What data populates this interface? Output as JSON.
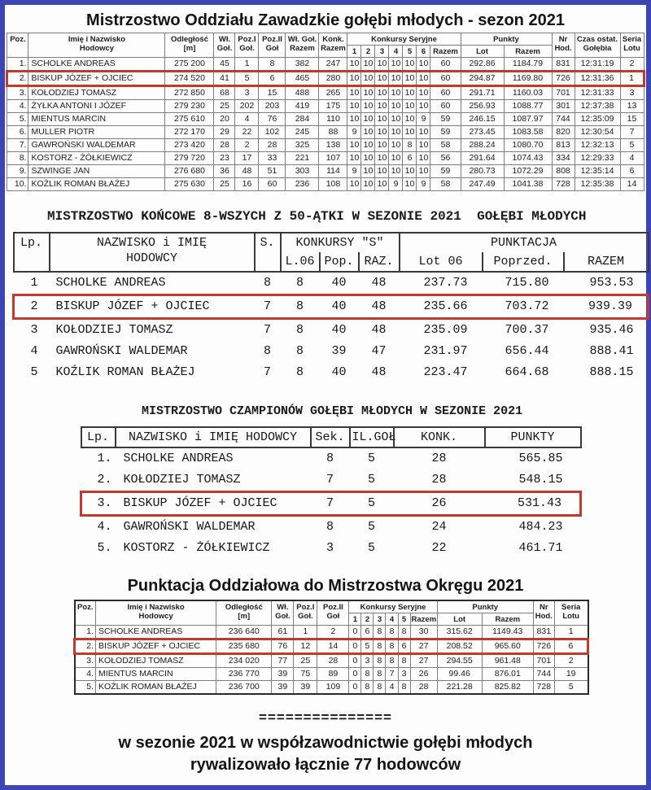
{
  "page": {
    "border_color": "#3b45b4",
    "background": "#fdfdfd",
    "highlight_color": "#c03a30"
  },
  "table1": {
    "title": "Mistrzostwo Oddziału Zawadzkie gołębi młodych - sezon 2021",
    "h": {
      "poz": "Poz.",
      "name1": "Imię i Nazwisko",
      "name2": "Hodowcy",
      "dist1": "Odległość",
      "dist2": "[m]",
      "wl1": "Wł.",
      "wl2": "Goł.",
      "p1a": "Poz.I",
      "p1b": "Goł.",
      "p2a": "Poz.II",
      "p2b": "Goł",
      "wgr1": "Wł. Goł.",
      "wgr2": "Razem",
      "kr1": "Konk.",
      "kr2": "Razem",
      "ks": "Konkursy Seryjne",
      "k1": "1",
      "k2": "2",
      "k3": "3",
      "k4": "4",
      "k5": "5",
      "k6": "6",
      "razem": "Razem",
      "punkty": "Punkty",
      "lot": "Lot",
      "prazem": "Razem",
      "nr1": "Nr",
      "nr2": "Hod.",
      "czas1": "Czas ostat.",
      "czas2": "Gołębia",
      "seria1": "Seria",
      "seria2": "Lotu"
    },
    "highlight_row": 1,
    "rows": [
      [
        "1.",
        "SCHOLKE ANDREAS",
        "275 200",
        "45",
        "1",
        "8",
        "382",
        "247",
        "10",
        "10",
        "10",
        "10",
        "10",
        "10",
        "60",
        "292.86",
        "1184.79",
        "831",
        "12:31:19",
        "2"
      ],
      [
        "2.",
        "BISKUP JÓZEF + OJCIEC",
        "274 520",
        "41",
        "5",
        "6",
        "465",
        "280",
        "10",
        "10",
        "10",
        "10",
        "10",
        "10",
        "60",
        "294.87",
        "1169.80",
        "726",
        "12:31:36",
        "1"
      ],
      [
        "3.",
        "KOŁODZIEJ TOMASZ",
        "272 850",
        "68",
        "3",
        "15",
        "488",
        "265",
        "10",
        "10",
        "10",
        "10",
        "10",
        "10",
        "60",
        "291.71",
        "1160.03",
        "701",
        "12:31:33",
        "3"
      ],
      [
        "4.",
        "ŻYŁKA ANTONI I JÓZEF",
        "279 230",
        "25",
        "202",
        "203",
        "419",
        "175",
        "10",
        "10",
        "10",
        "10",
        "10",
        "10",
        "60",
        "256.93",
        "1088.77",
        "301",
        "12:37:38",
        "13"
      ],
      [
        "5.",
        "MIENTUS MARCIN",
        "275 610",
        "20",
        "4",
        "76",
        "284",
        "110",
        "10",
        "10",
        "10",
        "10",
        "10",
        "9",
        "59",
        "246.15",
        "1087.97",
        "744",
        "12:35:09",
        "15"
      ],
      [
        "6.",
        "MULLER PIOTR",
        "272 170",
        "29",
        "22",
        "102",
        "245",
        "88",
        "9",
        "10",
        "10",
        "10",
        "10",
        "10",
        "59",
        "273.45",
        "1083.58",
        "820",
        "12:30:54",
        "7"
      ],
      [
        "7.",
        "GAWROŃSKI WALDEMAR",
        "273 420",
        "28",
        "2",
        "28",
        "325",
        "138",
        "10",
        "10",
        "10",
        "10",
        "8",
        "10",
        "58",
        "288.24",
        "1080.70",
        "813",
        "12:32:13",
        "5"
      ],
      [
        "8.",
        "KOSTORZ - ŻÓŁKIEWICZ",
        "279 720",
        "23",
        "17",
        "33",
        "221",
        "107",
        "10",
        "10",
        "10",
        "10",
        "6",
        "10",
        "56",
        "291.64",
        "1074.43",
        "334",
        "12:29:33",
        "4"
      ],
      [
        "9.",
        "SZWINGE JAN",
        "276 680",
        "36",
        "48",
        "51",
        "303",
        "114",
        "9",
        "10",
        "10",
        "10",
        "10",
        "10",
        "59",
        "280.73",
        "1072.29",
        "808",
        "12:35:14",
        "6"
      ],
      [
        "10.",
        "KOŻLIK ROMAN BŁAŻEJ",
        "275 630",
        "25",
        "16",
        "60",
        "236",
        "108",
        "10",
        "10",
        "10",
        "9",
        "10",
        "9",
        "58",
        "247.49",
        "1041.38",
        "728",
        "12:35:38",
        "14"
      ]
    ]
  },
  "table2": {
    "title": "MISTRZOSTWO KOŃCOWE 8-WSZYCH Z 50-ĄTKI W SEZONIE 2021  GOŁĘBI MŁODYCH",
    "h": {
      "lp": "Lp.",
      "name1": "NAZWISKO i IMIĘ",
      "name2": "HODOWCY",
      "s": "S.",
      "ks": "KONKURSY \"S\"",
      "l06": "L.06",
      "pop": "Pop.",
      "raz": "RAZ.",
      "punktacja": "PUNKTACJA",
      "lot06": "Lot 06",
      "poprzed": "Poprzed.",
      "razem": "RAZEM"
    },
    "highlight_row": 1,
    "rows": [
      [
        "1",
        "SCHOLKE ANDREAS",
        "8",
        "8",
        "40",
        "48",
        "237.73",
        "715.80",
        "953.53"
      ],
      [
        "2",
        "BISKUP JÓZEF + OJCIEC",
        "7",
        "8",
        "40",
        "48",
        "235.66",
        "703.72",
        "939.39"
      ],
      [
        "3",
        "KOŁODZIEJ TOMASZ",
        "7",
        "8",
        "40",
        "48",
        "235.09",
        "700.37",
        "935.46"
      ],
      [
        "4",
        "GAWROŃSKI WALDEMAR",
        "8",
        "8",
        "39",
        "47",
        "231.97",
        "656.44",
        "888.41"
      ],
      [
        "5",
        "KOŹLIK ROMAN BŁAŻEJ",
        "7",
        "8",
        "40",
        "48",
        "223.47",
        "664.68",
        "888.15"
      ]
    ]
  },
  "table3": {
    "title": "MISTRZOSTWO CZAMPIONÓW GOŁĘBI MŁODYCH W SEZONIE 2021",
    "h": {
      "lp": "Lp.",
      "name": "NAZWISKO i IMIĘ HODOWCY",
      "sek": "Sek.",
      "ilgol": "IL.GOŁ",
      "konk": "KONK.",
      "punkty": "PUNKTY"
    },
    "highlight_row": 2,
    "rows": [
      [
        "1.",
        "SCHOLKE ANDREAS",
        "8",
        "5",
        "28",
        "565.85"
      ],
      [
        "2.",
        "KOŁODZIEJ TOMASZ",
        "7",
        "5",
        "28",
        "548.15"
      ],
      [
        "3.",
        "BISKUP JÓZEF + OJCIEC",
        "7",
        "5",
        "26",
        "531.43"
      ],
      [
        "4.",
        "GAWROŃSKI WALDEMAR",
        "8",
        "5",
        "24",
        "484.23"
      ],
      [
        "5.",
        "KOSTORZ - ŻÓŁKIEWICZ",
        "3",
        "5",
        "22",
        "461.71"
      ]
    ]
  },
  "table4": {
    "title": "Punktacja Oddziałowa do Mistrzostwa Okręgu 2021",
    "h": {
      "poz": "Poz.",
      "name1": "Imię i Nazwisko",
      "name2": "Hodowcy",
      "dist1": "Odległość",
      "dist2": "[m]",
      "wl1": "Wł.",
      "wl2": "Goł.",
      "p1a": "Poz.I",
      "p1b": "Goł.",
      "p2a": "Poz.II",
      "p2b": "Goł",
      "ks": "Konkursy Seryjne",
      "k1": "1",
      "k2": "2",
      "k3": "3",
      "k4": "4",
      "k5": "5",
      "razem": "Razem",
      "punkty": "Punkty",
      "lot": "Lot",
      "prazem": "Razem",
      "nr1": "Nr",
      "nr2": "Hod.",
      "seria1": "Seria",
      "seria2": "Lotu"
    },
    "highlight_row": 1,
    "rows": [
      [
        "1.",
        "SCHOLKE ANDREAS",
        "236 640",
        "61",
        "1",
        "2",
        "0",
        "6",
        "8",
        "8",
        "8",
        "30",
        "315.62",
        "1149.43",
        "831",
        "1"
      ],
      [
        "2.",
        "BISKUP JÓZEF + OJCIEC",
        "235 680",
        "76",
        "12",
        "14",
        "0",
        "5",
        "8",
        "8",
        "6",
        "27",
        "208.52",
        "965.60",
        "726",
        "6"
      ],
      [
        "3.",
        "KOŁODZIEJ TOMASZ",
        "234 020",
        "77",
        "25",
        "28",
        "0",
        "3",
        "8",
        "8",
        "8",
        "27",
        "294.55",
        "961.48",
        "701",
        "2"
      ],
      [
        "4.",
        "MIENTUS MARCIN",
        "236 770",
        "39",
        "75",
        "89",
        "0",
        "8",
        "8",
        "7",
        "3",
        "26",
        "99.46",
        "876.01",
        "744",
        "19"
      ],
      [
        "5.",
        "KOŹLIK ROMAN BŁAŻEJ",
        "236 700",
        "39",
        "39",
        "109",
        "0",
        "8",
        "8",
        "4",
        "8",
        "28",
        "221.28",
        "825.82",
        "728",
        "5"
      ]
    ]
  },
  "footer": {
    "divider": "===============",
    "line1": "w sezonie 2021 w współzawodnictwie gołębi młodych",
    "line2": "rywalizowało łącznie 77 hodowców"
  }
}
